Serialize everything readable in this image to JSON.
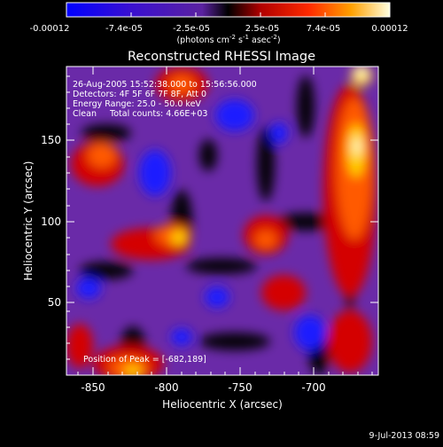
{
  "colorbar": {
    "tick_labels": [
      "-0.00012",
      "-7.4e-05",
      "-2.5e-05",
      "2.5e-05",
      "7.4e-05",
      "0.00012"
    ],
    "unit_prefix": "(photons cm",
    "unit_exp1": "-2",
    "unit_mid": " s",
    "unit_exp2": "-1",
    "unit_suffix": " asec",
    "unit_exp3": "-2",
    "unit_close": ")"
  },
  "image": {
    "title": "Reconstructed RHESSI Image",
    "info": {
      "time_range": "26-Aug-2005 15:52:38.000 to 15:56:56.000",
      "detectors": "Detectors: 4F 5F 6F 7F 8F, Att 0",
      "energy_range": "Energy Range: 25.0 - 50.0 keV",
      "algorithm_counts": "Clean     Total counts: 4.66E+03"
    },
    "peak_position": "Position of Peak = [-682,189]",
    "x_axis": {
      "label": "Heliocentric X (arcsec)",
      "ticks": [
        "-850",
        "-800",
        "-750",
        "-700"
      ]
    },
    "y_axis": {
      "label": "Heliocentric Y (arcsec)",
      "ticks": [
        "50",
        "100",
        "150"
      ]
    }
  },
  "footer": {
    "date": "9-Jul-2013 08:59"
  }
}
